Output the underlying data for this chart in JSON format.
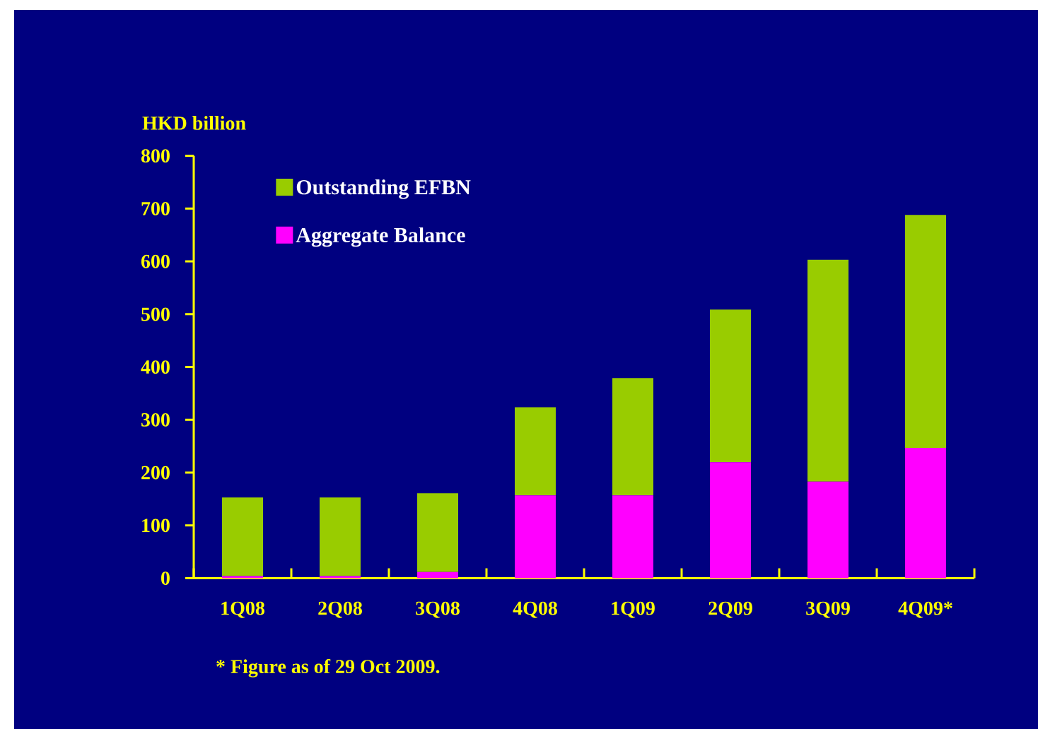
{
  "chart_data": {
    "type": "bar",
    "stacked": true,
    "ylabel": "HKD billion",
    "categories": [
      "1Q08",
      "2Q08",
      "3Q08",
      "4Q08",
      "1Q09",
      "2Q09",
      "3Q09",
      "4Q09*"
    ],
    "series": [
      {
        "name": "Aggregate Balance",
        "color": "#ff00ff",
        "values": [
          4,
          4,
          12,
          157,
          157,
          220,
          183,
          247
        ]
      },
      {
        "name": "Outstanding EFBN",
        "color": "#99cc00",
        "values": [
          149,
          149,
          149,
          167,
          222,
          289,
          420,
          441
        ]
      }
    ],
    "ylim": [
      0,
      800
    ],
    "yticks": [
      0,
      100,
      200,
      300,
      400,
      500,
      600,
      700,
      800
    ],
    "legend": "top left",
    "annotations": [
      "* Figure as of 29 Oct 2009."
    ]
  }
}
